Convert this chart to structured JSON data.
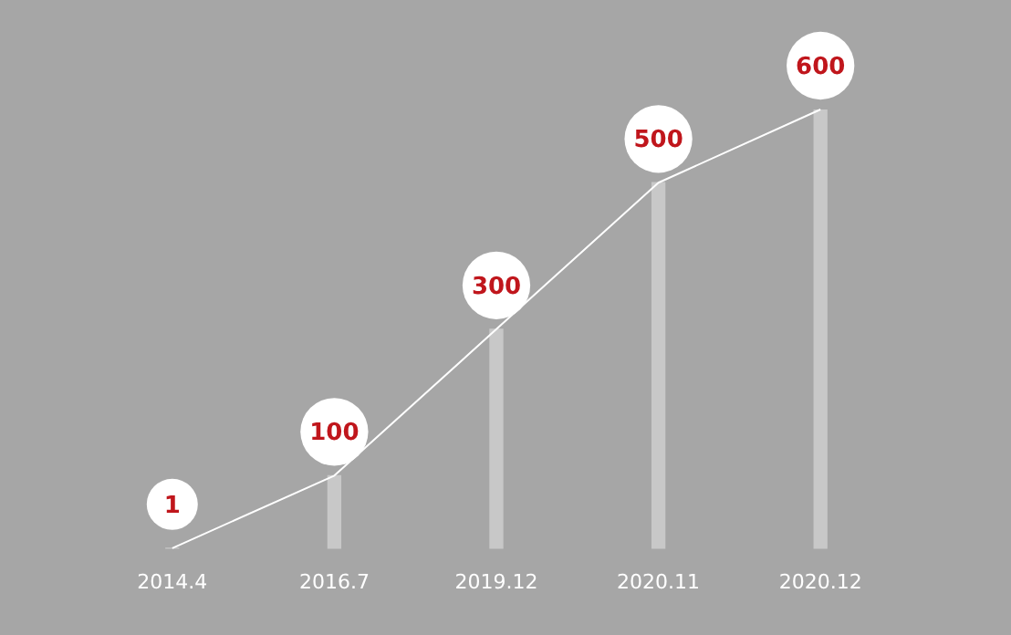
{
  "chart_data": {
    "type": "bar",
    "categories": [
      "2014.4",
      "2016.7",
      "2019.12",
      "2020.11",
      "2020.12"
    ],
    "series": [
      {
        "color": "#c8c8c8",
        "values": [
          1,
          100,
          300,
          500,
          600
        ],
        "value_labels": [
          "1",
          "100",
          "300",
          "500",
          "600"
        ]
      },
      {
        "type": "line",
        "color": "#ffffff",
        "values": [
          1,
          100,
          300,
          500,
          600
        ]
      }
    ],
    "grid": false,
    "legend": false,
    "tick_labels": "x"
  }
}
